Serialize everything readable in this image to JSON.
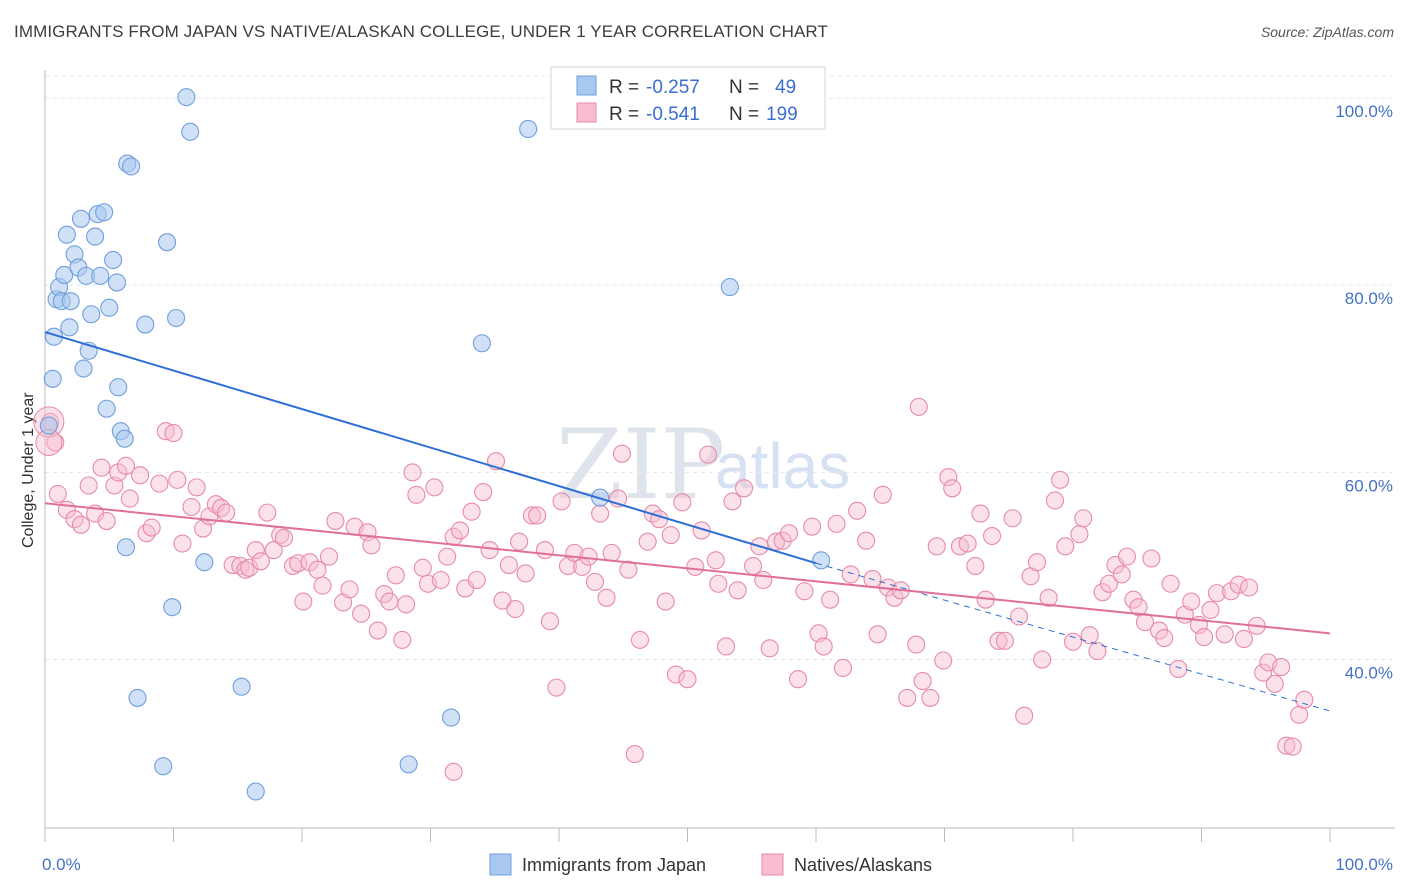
{
  "title": "IMMIGRANTS FROM JAPAN VS NATIVE/ALASKAN COLLEGE, UNDER 1 YEAR CORRELATION CHART",
  "source": "Source: ZipAtlas.com",
  "watermark": {
    "zip": "ZIP",
    "atlas": "atlas"
  },
  "legend": {
    "r_label": "R =",
    "n_label": "N =",
    "rows": [
      {
        "r": "-0.257",
        "n": "49",
        "color": "#a9c8f0",
        "stroke": "#6f9fdc"
      },
      {
        "r": "-0.541",
        "n": "199",
        "color": "#f7bcd0",
        "stroke": "#e88aa9"
      }
    ]
  },
  "chart_data": {
    "type": "scatter",
    "title": "IMMIGRANTS FROM JAPAN VS NATIVE/ALASKAN COLLEGE, UNDER 1 YEAR CORRELATION CHART",
    "xlabel": "",
    "ylabel": "College, Under 1 year",
    "xlim": [
      0,
      100
    ],
    "ylim": [
      22,
      103
    ],
    "x_tick_labels": [
      "0.0%",
      "100.0%"
    ],
    "y_ticks": [
      40,
      60,
      80,
      100
    ],
    "y_tick_labels": [
      "40.0%",
      "60.0%",
      "80.0%",
      "100.0%"
    ],
    "series": [
      {
        "name": "Immigrants from Japan",
        "color": "#a9c8f0",
        "stroke": "#6f9fdc",
        "line_color": "#2f6fd4",
        "trend": {
          "x0": 0,
          "y0": 75.0,
          "x1": 60,
          "y1": 50.3,
          "dash_to_x": 100,
          "dash_to_y": 34.5
        },
        "points": [
          [
            0.3,
            65
          ],
          [
            0.6,
            70
          ],
          [
            0.7,
            74.5
          ],
          [
            0.9,
            78.5
          ],
          [
            1.1,
            79.8
          ],
          [
            1.3,
            78.3
          ],
          [
            1.5,
            81.1
          ],
          [
            1.7,
            85.4
          ],
          [
            1.9,
            75.5
          ],
          [
            2.0,
            78.3
          ],
          [
            2.3,
            83.3
          ],
          [
            2.6,
            81.9
          ],
          [
            2.8,
            87.1
          ],
          [
            3.0,
            71.1
          ],
          [
            3.2,
            81.0
          ],
          [
            3.4,
            73.0
          ],
          [
            3.6,
            76.9
          ],
          [
            3.9,
            85.2
          ],
          [
            4.1,
            87.6
          ],
          [
            4.3,
            81.0
          ],
          [
            4.6,
            87.8
          ],
          [
            4.8,
            66.8
          ],
          [
            5.0,
            77.6
          ],
          [
            5.3,
            82.7
          ],
          [
            5.6,
            80.3
          ],
          [
            5.7,
            69.1
          ],
          [
            5.9,
            64.4
          ],
          [
            6.2,
            63.6
          ],
          [
            6.3,
            52.0
          ],
          [
            6.4,
            93.0
          ],
          [
            6.7,
            92.7
          ],
          [
            7.2,
            35.9
          ],
          [
            7.8,
            75.8
          ],
          [
            9.2,
            28.6
          ],
          [
            9.5,
            84.6
          ],
          [
            9.9,
            45.6
          ],
          [
            10.2,
            76.5
          ],
          [
            11.0,
            100.1
          ],
          [
            11.3,
            96.4
          ],
          [
            12.4,
            50.4
          ],
          [
            15.3,
            37.1
          ],
          [
            16.4,
            25.9
          ],
          [
            28.3,
            28.8
          ],
          [
            31.6,
            33.8
          ],
          [
            34.0,
            73.8
          ],
          [
            37.6,
            96.7
          ],
          [
            43.2,
            57.3
          ],
          [
            53.3,
            79.8
          ],
          [
            60.4,
            50.6
          ]
        ]
      },
      {
        "name": "Natives/Alaskans",
        "color": "#f7bcd0",
        "stroke": "#e88aa9",
        "line_color": "#e0709a",
        "trend": {
          "x0": 0,
          "y0": 56.7,
          "x1": 100,
          "y1": 42.8
        },
        "points": [
          [
            0.4,
            65.4
          ],
          [
            0.8,
            63.2
          ],
          [
            1.0,
            57.7
          ],
          [
            1.7,
            56.0
          ],
          [
            2.3,
            55.0
          ],
          [
            2.8,
            54.4
          ],
          [
            3.4,
            58.6
          ],
          [
            3.9,
            55.6
          ],
          [
            4.4,
            60.5
          ],
          [
            4.8,
            54.8
          ],
          [
            5.4,
            58.6
          ],
          [
            5.7,
            60.0
          ],
          [
            6.3,
            60.7
          ],
          [
            6.6,
            57.2
          ],
          [
            7.4,
            59.7
          ],
          [
            7.9,
            53.5
          ],
          [
            8.3,
            54.1
          ],
          [
            8.9,
            58.8
          ],
          [
            9.4,
            64.4
          ],
          [
            10.0,
            64.2
          ],
          [
            10.3,
            59.2
          ],
          [
            10.7,
            52.4
          ],
          [
            11.4,
            56.3
          ],
          [
            11.8,
            58.4
          ],
          [
            12.3,
            54.0
          ],
          [
            12.8,
            55.3
          ],
          [
            13.3,
            56.6
          ],
          [
            13.7,
            56.2
          ],
          [
            14.1,
            55.7
          ],
          [
            14.6,
            50.1
          ],
          [
            15.2,
            50.0
          ],
          [
            15.6,
            49.6
          ],
          [
            15.9,
            49.8
          ],
          [
            16.4,
            51.7
          ],
          [
            16.8,
            50.5
          ],
          [
            17.3,
            55.7
          ],
          [
            17.8,
            51.7
          ],
          [
            18.3,
            53.3
          ],
          [
            18.6,
            53.0
          ],
          [
            19.3,
            50.0
          ],
          [
            19.7,
            50.3
          ],
          [
            20.1,
            46.2
          ],
          [
            20.6,
            50.4
          ],
          [
            21.2,
            49.6
          ],
          [
            21.6,
            47.9
          ],
          [
            22.1,
            51.0
          ],
          [
            22.6,
            54.8
          ],
          [
            23.2,
            46.1
          ],
          [
            23.7,
            47.5
          ],
          [
            24.1,
            54.2
          ],
          [
            24.6,
            44.9
          ],
          [
            25.1,
            53.6
          ],
          [
            25.4,
            52.2
          ],
          [
            25.9,
            43.1
          ],
          [
            26.4,
            47.0
          ],
          [
            26.8,
            46.2
          ],
          [
            27.3,
            49.0
          ],
          [
            27.8,
            42.1
          ],
          [
            28.1,
            45.9
          ],
          [
            28.6,
            60.0
          ],
          [
            28.9,
            57.6
          ],
          [
            29.4,
            49.8
          ],
          [
            29.8,
            48.1
          ],
          [
            30.3,
            58.4
          ],
          [
            30.8,
            48.5
          ],
          [
            31.3,
            51.0
          ],
          [
            31.8,
            53.1
          ],
          [
            32.3,
            53.8
          ],
          [
            32.7,
            47.6
          ],
          [
            33.2,
            55.8
          ],
          [
            33.6,
            48.5
          ],
          [
            34.1,
            57.9
          ],
          [
            34.6,
            51.7
          ],
          [
            35.1,
            61.2
          ],
          [
            35.6,
            46.3
          ],
          [
            36.1,
            50.1
          ],
          [
            36.6,
            45.4
          ],
          [
            36.9,
            52.6
          ],
          [
            37.4,
            49.2
          ],
          [
            37.9,
            55.4
          ],
          [
            38.3,
            55.4
          ],
          [
            38.9,
            51.7
          ],
          [
            39.3,
            44.1
          ],
          [
            39.8,
            37.0
          ],
          [
            40.2,
            56.9
          ],
          [
            40.7,
            50.0
          ],
          [
            41.2,
            51.4
          ],
          [
            41.8,
            49.9
          ],
          [
            42.3,
            51.0
          ],
          [
            42.8,
            48.3
          ],
          [
            43.2,
            55.6
          ],
          [
            43.7,
            46.6
          ],
          [
            44.1,
            51.4
          ],
          [
            44.6,
            57.2
          ],
          [
            44.9,
            62.0
          ],
          [
            45.4,
            49.6
          ],
          [
            45.9,
            29.9
          ],
          [
            46.3,
            42.1
          ],
          [
            46.9,
            52.6
          ],
          [
            47.3,
            55.6
          ],
          [
            47.8,
            55.0
          ],
          [
            48.3,
            46.2
          ],
          [
            48.7,
            53.3
          ],
          [
            49.1,
            38.4
          ],
          [
            49.6,
            56.8
          ],
          [
            50.0,
            37.9
          ],
          [
            50.6,
            49.9
          ],
          [
            51.1,
            53.8
          ],
          [
            51.6,
            61.9
          ],
          [
            52.2,
            50.6
          ],
          [
            52.4,
            48.1
          ],
          [
            53.0,
            41.4
          ],
          [
            53.5,
            56.9
          ],
          [
            53.9,
            47.4
          ],
          [
            54.4,
            58.3
          ],
          [
            55.1,
            50.0
          ],
          [
            55.6,
            52.1
          ],
          [
            55.9,
            48.5
          ],
          [
            56.4,
            41.2
          ],
          [
            56.9,
            52.6
          ],
          [
            57.4,
            52.7
          ],
          [
            57.9,
            53.5
          ],
          [
            58.6,
            37.9
          ],
          [
            59.1,
            47.3
          ],
          [
            59.7,
            54.2
          ],
          [
            60.2,
            42.8
          ],
          [
            60.6,
            41.4
          ],
          [
            61.1,
            46.4
          ],
          [
            61.6,
            54.5
          ],
          [
            62.1,
            39.1
          ],
          [
            62.7,
            49.1
          ],
          [
            63.2,
            55.9
          ],
          [
            63.9,
            52.7
          ],
          [
            64.4,
            48.6
          ],
          [
            64.8,
            42.7
          ],
          [
            65.2,
            57.6
          ],
          [
            65.6,
            47.7
          ],
          [
            66.1,
            46.6
          ],
          [
            66.6,
            47.4
          ],
          [
            67.1,
            35.9
          ],
          [
            67.8,
            41.6
          ],
          [
            68.3,
            37.7
          ],
          [
            68.9,
            35.9
          ],
          [
            69.4,
            52.1
          ],
          [
            69.9,
            39.9
          ],
          [
            70.3,
            59.5
          ],
          [
            70.6,
            58.3
          ],
          [
            71.2,
            52.1
          ],
          [
            71.8,
            52.4
          ],
          [
            72.4,
            50.0
          ],
          [
            72.8,
            55.6
          ],
          [
            73.2,
            46.4
          ],
          [
            73.7,
            53.2
          ],
          [
            74.2,
            42.0
          ],
          [
            74.7,
            42.0
          ],
          [
            75.3,
            55.1
          ],
          [
            75.8,
            44.6
          ],
          [
            76.2,
            34.0
          ],
          [
            76.7,
            48.9
          ],
          [
            77.2,
            50.4
          ],
          [
            77.6,
            40.0
          ],
          [
            78.1,
            46.6
          ],
          [
            78.6,
            57.0
          ],
          [
            79.0,
            59.2
          ],
          [
            79.4,
            52.1
          ],
          [
            80.0,
            41.9
          ],
          [
            80.5,
            53.4
          ],
          [
            80.8,
            55.1
          ],
          [
            81.3,
            42.6
          ],
          [
            81.9,
            40.9
          ],
          [
            82.3,
            47.2
          ],
          [
            82.8,
            48.1
          ],
          [
            83.3,
            50.1
          ],
          [
            83.8,
            49.1
          ],
          [
            84.2,
            51.0
          ],
          [
            84.7,
            46.4
          ],
          [
            85.1,
            45.6
          ],
          [
            85.6,
            44.0
          ],
          [
            86.1,
            50.8
          ],
          [
            86.7,
            43.1
          ],
          [
            87.1,
            42.3
          ],
          [
            87.6,
            48.1
          ],
          [
            88.2,
            39.0
          ],
          [
            88.7,
            44.8
          ],
          [
            89.2,
            46.2
          ],
          [
            89.8,
            43.7
          ],
          [
            90.2,
            42.4
          ],
          [
            90.7,
            45.3
          ],
          [
            91.2,
            47.1
          ],
          [
            91.8,
            42.7
          ],
          [
            92.3,
            47.3
          ],
          [
            92.9,
            48.0
          ],
          [
            93.3,
            42.2
          ],
          [
            93.7,
            47.7
          ],
          [
            94.3,
            43.6
          ],
          [
            94.8,
            38.6
          ],
          [
            95.2,
            39.7
          ],
          [
            95.7,
            37.4
          ],
          [
            96.2,
            39.2
          ],
          [
            96.6,
            30.8
          ],
          [
            97.1,
            30.7
          ],
          [
            97.6,
            34.1
          ],
          [
            98.0,
            35.7
          ],
          [
            68.0,
            67.0
          ],
          [
            31.8,
            28.0
          ]
        ]
      }
    ]
  },
  "bottom_legend": [
    {
      "label": "Immigrants from Japan",
      "color": "#a9c8f0",
      "stroke": "#6f9fdc"
    },
    {
      "label": "Natives/Alaskans",
      "color": "#f7bcd0",
      "stroke": "#e88aa9"
    }
  ]
}
